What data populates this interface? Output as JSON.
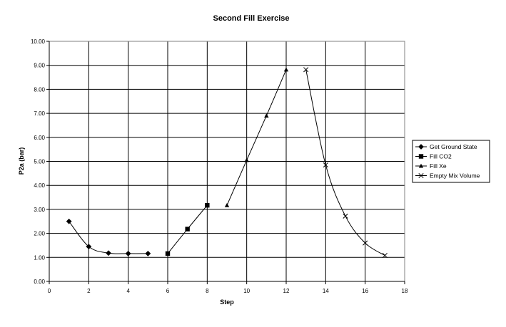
{
  "chart_data": {
    "type": "line",
    "title": "Second Fill Exercise",
    "xlabel": "Step",
    "ylabel": "P2a (bar)",
    "xlim": [
      0,
      18
    ],
    "ylim": [
      0,
      10
    ],
    "x_ticks": [
      "0",
      "2",
      "4",
      "6",
      "8",
      "10",
      "12",
      "14",
      "16",
      "18"
    ],
    "y_ticks": [
      "0.00",
      "1.00",
      "2.00",
      "3.00",
      "4.00",
      "5.00",
      "6.00",
      "7.00",
      "8.00",
      "9.00",
      "10.00"
    ],
    "grid": true,
    "legend_position": "right",
    "series": [
      {
        "name": "Get Ground State",
        "marker": "diamond",
        "smooth": true,
        "x": [
          1,
          2,
          3,
          4,
          5
        ],
        "y": [
          2.5,
          1.45,
          1.18,
          1.16,
          1.16
        ]
      },
      {
        "name": "Fill CO2",
        "marker": "square",
        "smooth": true,
        "x": [
          6,
          7,
          8
        ],
        "y": [
          1.16,
          2.18,
          3.17
        ]
      },
      {
        "name": "Fill Xe",
        "marker": "triangle",
        "smooth": true,
        "x": [
          9,
          10,
          11,
          12
        ],
        "y": [
          3.17,
          5.05,
          6.9,
          8.82
        ]
      },
      {
        "name": "Empty Mix Volume",
        "marker": "x",
        "smooth": true,
        "x": [
          13,
          14,
          15,
          16,
          17
        ],
        "y": [
          8.82,
          4.85,
          2.72,
          1.6,
          1.08
        ]
      }
    ]
  }
}
